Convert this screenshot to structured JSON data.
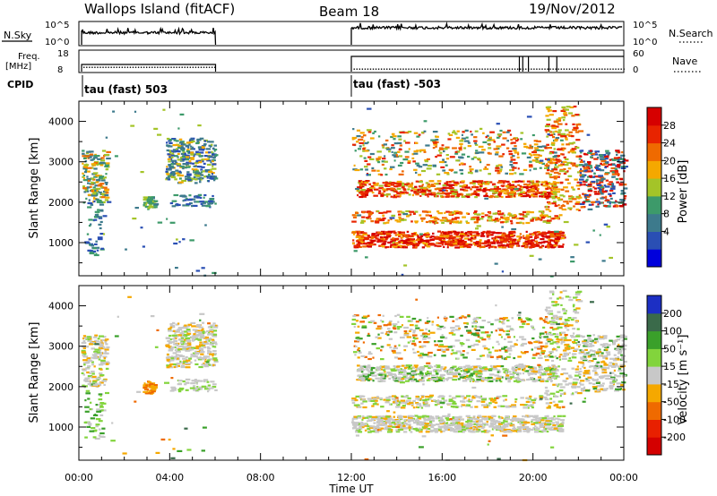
{
  "header": {
    "title": "Wallops Island (fitACF)",
    "beam": "Beam 18",
    "date": "19/Nov/2012"
  },
  "status_panels": {
    "nsky_label": "N.Sky",
    "nsky_ticks": [
      "10^5",
      "10^0"
    ],
    "nsearch_label": "N.Search",
    "nsearch_ticks": [
      "10^5",
      "10^0"
    ],
    "freq_label_1": "Freq.",
    "freq_label_2": "[MHz]",
    "freq_ticks": [
      "18",
      "8"
    ],
    "nave_label": "Nave",
    "nave_ticks": [
      "60",
      "0"
    ],
    "cpid_label": "CPID",
    "cpid_text_1": "tau (fast) 503",
    "cpid_text_2": "tau (fast) -503"
  },
  "chart_data": [
    {
      "type": "heatmap",
      "name": "power",
      "xlabel": "Time UT",
      "ylabel": "Slant Range [km]",
      "xlim": [
        0,
        24
      ],
      "ylim": [
        180,
        4500
      ],
      "x_ticks": [
        "00:00",
        "04:00",
        "08:00",
        "12:00",
        "16:00",
        "20:00",
        "00:00"
      ],
      "y_ticks": [
        "1000",
        "2000",
        "3000",
        "4000"
      ],
      "colorbar_label": "Power [dB]",
      "colorbar_ticks": [
        "28",
        "24",
        "20",
        "16",
        "12",
        "8",
        "4"
      ],
      "colors": [
        "#0000dc",
        "#2a4fb4",
        "#3d7a8c",
        "#3d9a6a",
        "#a4c428",
        "#f5a800",
        "#ef6a00",
        "#e82400",
        "#d60000"
      ]
    },
    {
      "type": "heatmap",
      "name": "velocity",
      "xlabel": "Time UT",
      "ylabel": "Slant Range [km]",
      "xlim": [
        0,
        24
      ],
      "ylim": [
        180,
        4500
      ],
      "x_ticks": [
        "00:00",
        "04:00",
        "08:00",
        "12:00",
        "16:00",
        "20:00",
        "00:00"
      ],
      "y_ticks": [
        "1000",
        "2000",
        "3000",
        "4000"
      ],
      "colorbar_label": "Velocity [m s⁻¹]",
      "colorbar_ticks": [
        "200",
        "100",
        "50",
        "15",
        "-15",
        "-50",
        "-100",
        "-200"
      ],
      "colors": [
        "#1c2fc4",
        "#3a6a4a",
        "#3aa02a",
        "#82d43c",
        "#c8c8c8",
        "#f5a800",
        "#ef6a00",
        "#e82000",
        "#d40000"
      ]
    }
  ]
}
